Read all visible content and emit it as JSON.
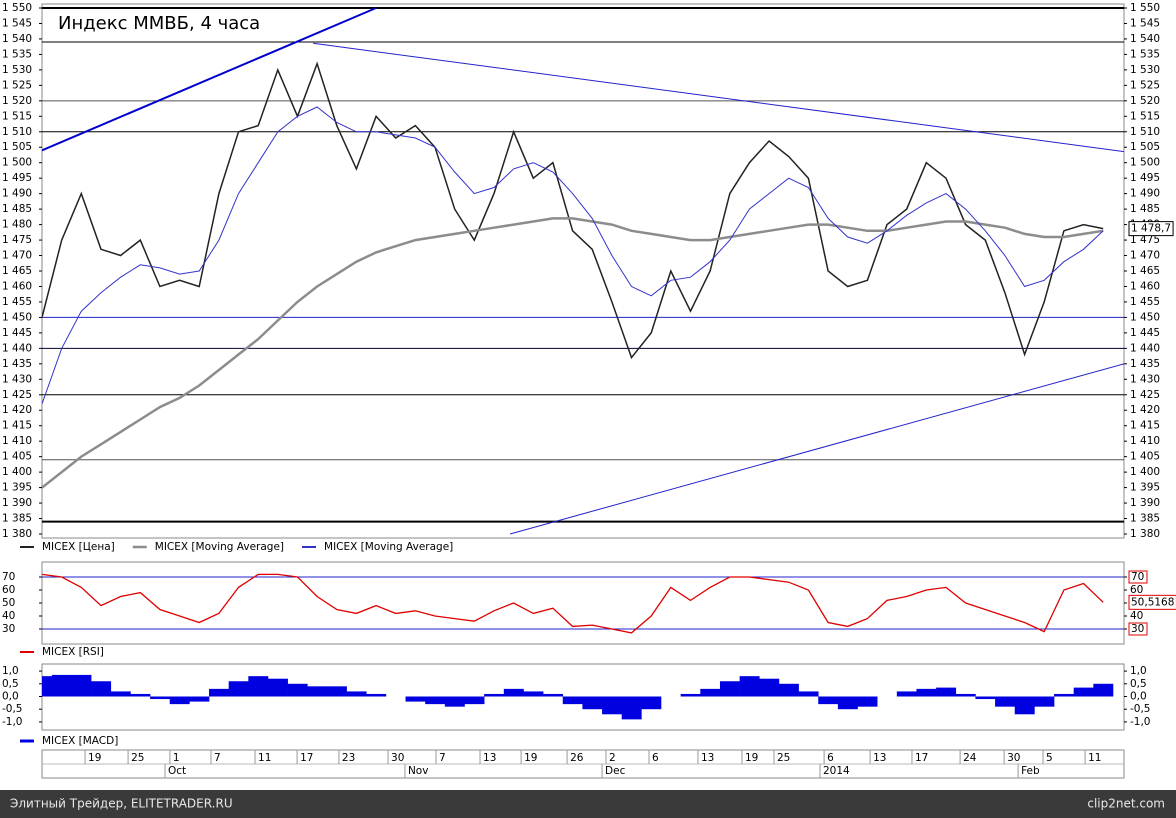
{
  "chart_data": [
    {
      "type": "line",
      "title": "Индекс ММВБ, 4 часа",
      "x": [
        0,
        1,
        2,
        3,
        4,
        5,
        6,
        7,
        8,
        9,
        10,
        11,
        12,
        13,
        14,
        15,
        16,
        17,
        18,
        19,
        20,
        21,
        22,
        23,
        24,
        25,
        26,
        27,
        28,
        29,
        30,
        31,
        32,
        33,
        34,
        35,
        36,
        37,
        38,
        39,
        40,
        41,
        42,
        43,
        44,
        45,
        46,
        47,
        48,
        49,
        50,
        51,
        52,
        53,
        54
      ],
      "xlim": [
        0,
        55.06
      ],
      "ylim": [
        1380,
        1550
      ],
      "yticks": [
        {
          "value": 1380,
          "label": "1 380"
        },
        {
          "value": 1385,
          "label": "1 385"
        },
        {
          "value": 1390,
          "label": "1 390"
        },
        {
          "value": 1395,
          "label": "1 395"
        },
        {
          "value": 1400,
          "label": "1 400"
        },
        {
          "value": 1405,
          "label": "1 405"
        },
        {
          "value": 1410,
          "label": "1 410"
        },
        {
          "value": 1415,
          "label": "1 415"
        },
        {
          "value": 1420,
          "label": "1 420"
        },
        {
          "value": 1425,
          "label": "1 425"
        },
        {
          "value": 1430,
          "label": "1 430"
        },
        {
          "value": 1435,
          "label": "1 435"
        },
        {
          "value": 1440,
          "label": "1 440"
        },
        {
          "value": 1445,
          "label": "1 445"
        },
        {
          "value": 1450,
          "label": "1 450"
        },
        {
          "value": 1455,
          "label": "1 455"
        },
        {
          "value": 1460,
          "label": "1 460"
        },
        {
          "value": 1465,
          "label": "1 465"
        },
        {
          "value": 1470,
          "label": "1 470"
        },
        {
          "value": 1475,
          "label": "1 475"
        },
        {
          "value": 1480,
          "label": "1 480"
        },
        {
          "value": 1485,
          "label": "1 485"
        },
        {
          "value": 1490,
          "label": "1 490"
        },
        {
          "value": 1495,
          "label": "1 495"
        },
        {
          "value": 1500,
          "label": "1 500"
        },
        {
          "value": 1505,
          "label": "1 505"
        },
        {
          "value": 1510,
          "label": "1 510"
        },
        {
          "value": 1515,
          "label": "1 515"
        },
        {
          "value": 1520,
          "label": "1 520"
        },
        {
          "value": 1525,
          "label": "1 525"
        },
        {
          "value": 1530,
          "label": "1 530"
        },
        {
          "value": 1535,
          "label": "1 535"
        },
        {
          "value": 1540,
          "label": "1 540"
        },
        {
          "value": 1545,
          "label": "1 545"
        },
        {
          "value": 1550,
          "label": "1 550"
        }
      ],
      "series": [
        {
          "name": "MICEX [Цена]",
          "color": "#222222",
          "width": 1.5,
          "values": [
            1450,
            1475,
            1490,
            1472,
            1470,
            1475,
            1460,
            1462,
            1460,
            1490,
            1510,
            1512,
            1530,
            1515,
            1532,
            1512,
            1498,
            1515,
            1508,
            1512,
            1505,
            1485,
            1475,
            1490,
            1510,
            1495,
            1500,
            1478,
            1472,
            1455,
            1437,
            1445,
            1465,
            1452,
            1465,
            1490,
            1500,
            1507,
            1502,
            1495,
            1465,
            1460,
            1462,
            1480,
            1485,
            1500,
            1495,
            1480,
            1475,
            1458,
            1438,
            1455,
            1478,
            1480,
            1478.7
          ]
        },
        {
          "name": "MICEX [Moving Average]",
          "color": "#8c8c8c",
          "width": 2.5,
          "values": [
            1395,
            1400,
            1405,
            1409,
            1413,
            1417,
            1421,
            1424,
            1428,
            1433,
            1438,
            1443,
            1449,
            1455,
            1460,
            1464,
            1468,
            1471,
            1473,
            1475,
            1476,
            1477,
            1478,
            1479,
            1480,
            1481,
            1482,
            1482,
            1481,
            1480,
            1478,
            1477,
            1476,
            1475,
            1475,
            1476,
            1477,
            1478,
            1479,
            1480,
            1480,
            1479,
            1478,
            1478,
            1479,
            1480,
            1481,
            1481,
            1480,
            1479,
            1477,
            1476,
            1476,
            1477,
            1478
          ]
        },
        {
          "name": "MICEX [Moving Average]",
          "color": "#3333cc",
          "width": 1,
          "values": [
            1422,
            1440,
            1452,
            1458,
            1463,
            1467,
            1466,
            1464,
            1465,
            1475,
            1490,
            1500,
            1510,
            1515,
            1518,
            1513,
            1510,
            1510,
            1509,
            1508,
            1505,
            1497,
            1490,
            1492,
            1498,
            1500,
            1497,
            1490,
            1482,
            1470,
            1460,
            1457,
            1462,
            1463,
            1468,
            1475,
            1485,
            1490,
            1495,
            1492,
            1482,
            1476,
            1474,
            1478,
            1483,
            1487,
            1490,
            1485,
            1478,
            1470,
            1460,
            1462,
            1468,
            1472,
            1478
          ]
        }
      ],
      "levels": [
        {
          "value": 1550,
          "color": "#000000",
          "width": 2
        },
        {
          "value": 1539,
          "color": "#000000",
          "width": 1
        },
        {
          "value": 1520,
          "color": "#555555",
          "width": 1
        },
        {
          "value": 1510,
          "color": "#000000",
          "width": 1
        },
        {
          "value": 1450,
          "color": "#2222cc",
          "width": 1
        },
        {
          "value": 1440,
          "color": "#000033",
          "width": 1
        },
        {
          "value": 1425,
          "color": "#000000",
          "width": 1
        },
        {
          "value": 1404,
          "color": "#555555",
          "width": 1
        },
        {
          "value": 1384,
          "color": "#000000",
          "width": 2
        }
      ],
      "trendlines": [
        {
          "x": [
            0,
            17
          ],
          "y": [
            1504,
            1550
          ],
          "color": "#0000cc",
          "width": 2
        },
        {
          "x": [
            13.8,
            55.06
          ],
          "y": [
            1538.6,
            1503.6
          ],
          "color": "#2222cc",
          "width": 1
        },
        {
          "x": [
            23.82,
            55.06
          ],
          "y": [
            1380,
            1435
          ],
          "color": "#2222cc",
          "width": 1
        }
      ],
      "last_value": {
        "value": 1478.7,
        "label": "1 478,7"
      }
    },
    {
      "type": "line",
      "ylim": [
        20,
        80
      ],
      "yticks": [
        30,
        40,
        50,
        60,
        70
      ],
      "series": [
        {
          "name": "MICEX [RSI]",
          "color": "#e00000",
          "width": 1.3,
          "values": [
            72,
            70,
            62,
            48,
            55,
            58,
            45,
            40,
            35,
            42,
            62,
            72,
            72,
            70,
            55,
            45,
            42,
            48,
            42,
            44,
            40,
            38,
            36,
            44,
            50,
            42,
            46,
            32,
            33,
            30,
            27,
            40,
            62,
            52,
            62,
            70,
            70,
            68,
            66,
            60,
            35,
            32,
            38,
            52,
            55,
            60,
            62,
            50,
            45,
            40,
            35,
            28,
            60,
            65,
            50.5168
          ]
        }
      ],
      "levels": [
        {
          "value": 70,
          "color": "#2222cc",
          "width": 1
        },
        {
          "value": 30,
          "color": "#2222cc",
          "width": 1
        }
      ],
      "last_value": {
        "value": 50.5168,
        "label": "50,5168"
      }
    },
    {
      "type": "bar",
      "ylim": [
        -1.2,
        1.2
      ],
      "yticks": [
        {
          "value": -1,
          "label": "-1,0"
        },
        {
          "value": -0.5,
          "label": "-0,5"
        },
        {
          "value": 0,
          "label": "0,0"
        },
        {
          "value": 0.5,
          "label": "0,5"
        },
        {
          "value": 1,
          "label": "1,0"
        }
      ],
      "series": [
        {
          "name": "MICEX [MACD]",
          "color": "#0000e0",
          "width": 3,
          "values": [
            0.8,
            0.85,
            0.85,
            0.6,
            0.2,
            0.1,
            -0.1,
            -0.3,
            -0.2,
            0.3,
            0.6,
            0.8,
            0.7,
            0.5,
            0.4,
            0.4,
            0.2,
            0.1,
            0,
            -0.2,
            -0.3,
            -0.4,
            -0.3,
            0.1,
            0.3,
            0.2,
            0.1,
            -0.3,
            -0.5,
            -0.7,
            -0.9,
            -0.5,
            0,
            0.1,
            0.3,
            0.6,
            0.8,
            0.7,
            0.5,
            0.2,
            -0.3,
            -0.5,
            -0.4,
            0,
            0.2,
            0.3,
            0.35,
            0.1,
            -0.1,
            -0.4,
            -0.7,
            -0.4,
            0.1,
            0.35,
            0.5
          ]
        }
      ],
      "xticks": [
        {
          "value": 2.19,
          "label": "19"
        },
        {
          "value": 4.38,
          "label": "25"
        },
        {
          "value": 6.51,
          "label": "1"
        },
        {
          "value": 8.6,
          "label": "7"
        },
        {
          "value": 10.84,
          "label": "11"
        },
        {
          "value": 12.98,
          "label": "17"
        },
        {
          "value": 15.11,
          "label": "23"
        },
        {
          "value": 17.61,
          "label": "30"
        },
        {
          "value": 20.05,
          "label": "7"
        },
        {
          "value": 22.29,
          "label": "13"
        },
        {
          "value": 24.38,
          "label": "19"
        },
        {
          "value": 26.72,
          "label": "26"
        },
        {
          "value": 28.7,
          "label": "2"
        },
        {
          "value": 30.89,
          "label": "6"
        },
        {
          "value": 33.38,
          "label": "13"
        },
        {
          "value": 35.62,
          "label": "19"
        },
        {
          "value": 37.25,
          "label": "25"
        },
        {
          "value": 39.8,
          "label": "6"
        },
        {
          "value": 42.14,
          "label": "13"
        },
        {
          "value": 44.27,
          "label": "17"
        },
        {
          "value": 46.72,
          "label": "24"
        },
        {
          "value": 48.96,
          "label": "30"
        },
        {
          "value": 50.94,
          "label": "5"
        },
        {
          "value": 53.08,
          "label": "11"
        }
      ],
      "month_ticks": [
        {
          "value": 6.26,
          "label": "Oct"
        },
        {
          "value": 18.47,
          "label": "Nov"
        },
        {
          "value": 28.5,
          "label": "Dec"
        },
        {
          "value": 39.59,
          "label": "2014"
        },
        {
          "value": 49.67,
          "label": "Feb"
        }
      ]
    }
  ],
  "footer": {
    "source": "Элитный Трейдер, ELITETRADER.RU",
    "watermark": "clip2net.com"
  }
}
